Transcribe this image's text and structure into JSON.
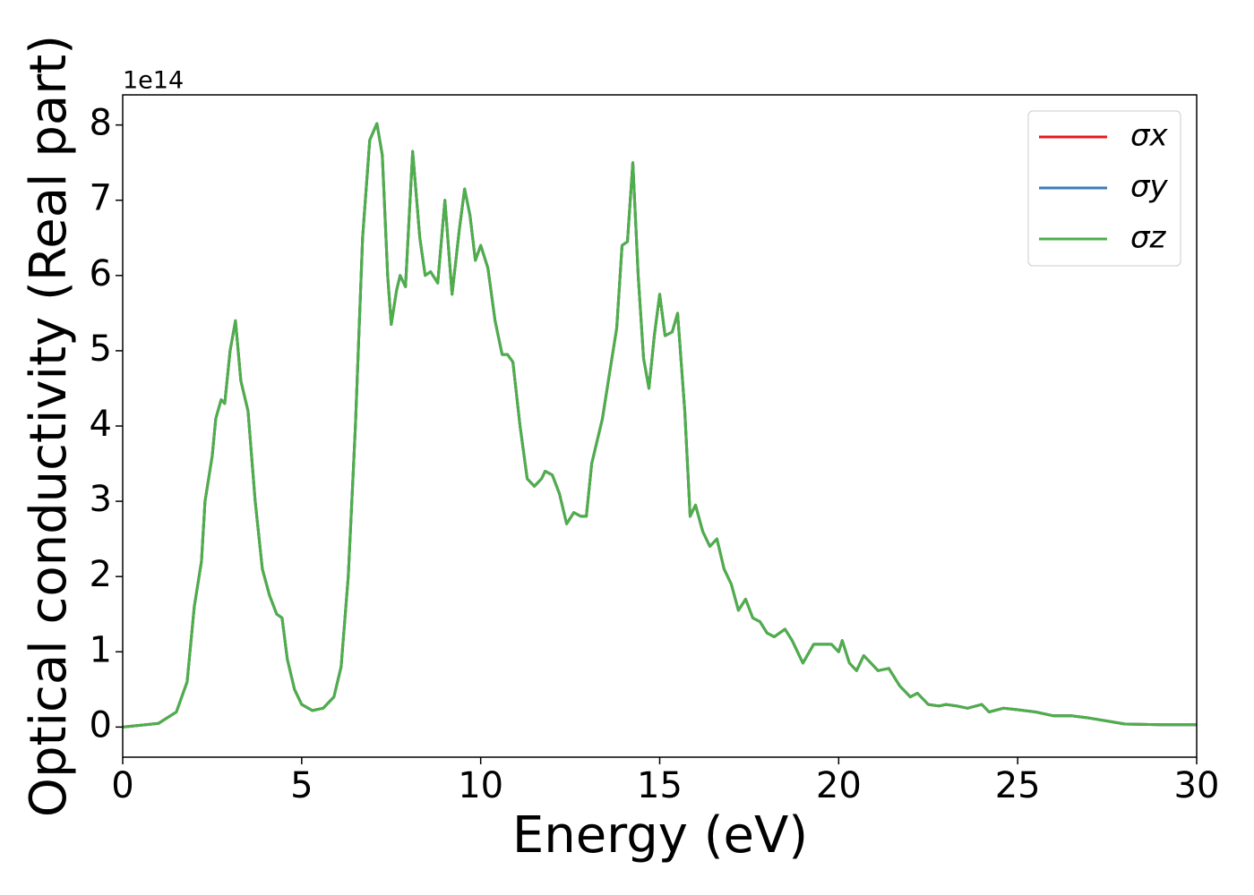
{
  "chart_data": {
    "type": "line",
    "x_label": "Energy (eV)",
    "y_label": "Optical conductivity (Real part)",
    "y_offset_label": "1e14",
    "xlim": [
      0,
      30
    ],
    "ylim": [
      -0.4,
      8.4
    ],
    "xticks": [
      0,
      5,
      10,
      15,
      20,
      25,
      30
    ],
    "yticks": [
      0,
      1,
      2,
      3,
      4,
      5,
      6,
      7,
      8
    ],
    "legend": "upper right",
    "x": [
      0,
      1,
      1.5,
      1.8,
      2.0,
      2.2,
      2.3,
      2.5,
      2.6,
      2.75,
      2.85,
      3.0,
      3.15,
      3.3,
      3.5,
      3.7,
      3.9,
      4.1,
      4.3,
      4.45,
      4.6,
      4.8,
      5.0,
      5.3,
      5.6,
      5.9,
      6.1,
      6.3,
      6.5,
      6.7,
      6.9,
      7.1,
      7.25,
      7.4,
      7.5,
      7.65,
      7.75,
      7.9,
      8.1,
      8.3,
      8.45,
      8.6,
      8.8,
      9.0,
      9.2,
      9.4,
      9.55,
      9.7,
      9.85,
      10.0,
      10.2,
      10.4,
      10.6,
      10.75,
      10.9,
      11.1,
      11.3,
      11.5,
      11.7,
      11.8,
      12.0,
      12.2,
      12.4,
      12.6,
      12.8,
      12.95,
      13.1,
      13.4,
      13.6,
      13.8,
      13.95,
      14.1,
      14.25,
      14.4,
      14.55,
      14.7,
      14.85,
      15.0,
      15.15,
      15.35,
      15.5,
      15.7,
      15.85,
      16.0,
      16.2,
      16.4,
      16.6,
      16.8,
      17.0,
      17.2,
      17.4,
      17.6,
      17.8,
      18.0,
      18.2,
      18.5,
      18.7,
      19.0,
      19.3,
      19.6,
      19.8,
      20.0,
      20.1,
      20.3,
      20.5,
      20.7,
      20.9,
      21.1,
      21.4,
      21.7,
      22.0,
      22.2,
      22.5,
      22.8,
      23.0,
      23.3,
      23.6,
      24.0,
      24.2,
      24.6,
      25.0,
      25.5,
      26.0,
      26.5,
      27.0,
      27.5,
      28.0,
      29.0,
      30.0
    ],
    "series": [
      {
        "name": "σx",
        "color": "#e41a1c",
        "values": [
          0.0,
          0.05,
          0.2,
          0.6,
          1.6,
          2.2,
          3.0,
          3.6,
          4.1,
          4.35,
          4.3,
          5.0,
          5.4,
          4.6,
          4.2,
          3.0,
          2.1,
          1.75,
          1.5,
          1.45,
          0.9,
          0.5,
          0.3,
          0.22,
          0.25,
          0.4,
          0.8,
          2.0,
          4.0,
          6.5,
          7.8,
          8.02,
          7.6,
          6.0,
          5.35,
          5.8,
          6.0,
          5.85,
          7.65,
          6.5,
          6.0,
          6.05,
          5.9,
          7.0,
          5.75,
          6.6,
          7.15,
          6.8,
          6.2,
          6.4,
          6.1,
          5.4,
          4.95,
          4.95,
          4.85,
          4.0,
          3.3,
          3.2,
          3.3,
          3.4,
          3.35,
          3.1,
          2.7,
          2.85,
          2.8,
          2.8,
          3.5,
          4.1,
          4.7,
          5.3,
          6.4,
          6.45,
          7.5,
          6.0,
          4.9,
          4.5,
          5.2,
          5.75,
          5.2,
          5.25,
          5.5,
          4.2,
          2.8,
          2.95,
          2.6,
          2.4,
          2.5,
          2.1,
          1.9,
          1.55,
          1.7,
          1.45,
          1.4,
          1.25,
          1.2,
          1.3,
          1.15,
          0.85,
          1.1,
          1.1,
          1.1,
          1.0,
          1.15,
          0.85,
          0.75,
          0.95,
          0.85,
          0.75,
          0.78,
          0.55,
          0.4,
          0.45,
          0.3,
          0.28,
          0.3,
          0.28,
          0.25,
          0.3,
          0.2,
          0.25,
          0.23,
          0.2,
          0.15,
          0.15,
          0.12,
          0.08,
          0.04,
          0.03,
          0.03
        ]
      },
      {
        "name": "σy",
        "color": "#377eb8",
        "values": [
          0.0,
          0.05,
          0.2,
          0.6,
          1.6,
          2.2,
          3.0,
          3.6,
          4.1,
          4.35,
          4.3,
          5.0,
          5.4,
          4.6,
          4.2,
          3.0,
          2.1,
          1.75,
          1.5,
          1.45,
          0.9,
          0.5,
          0.3,
          0.22,
          0.25,
          0.4,
          0.8,
          2.0,
          4.0,
          6.5,
          7.8,
          8.02,
          7.6,
          6.0,
          5.35,
          5.8,
          6.0,
          5.85,
          7.65,
          6.5,
          6.0,
          6.05,
          5.9,
          7.0,
          5.75,
          6.6,
          7.15,
          6.8,
          6.2,
          6.4,
          6.1,
          5.4,
          4.95,
          4.95,
          4.85,
          4.0,
          3.3,
          3.2,
          3.3,
          3.4,
          3.35,
          3.1,
          2.7,
          2.85,
          2.8,
          2.8,
          3.5,
          4.1,
          4.7,
          5.3,
          6.4,
          6.45,
          7.5,
          6.0,
          4.9,
          4.5,
          5.2,
          5.75,
          5.2,
          5.25,
          5.5,
          4.2,
          2.8,
          2.95,
          2.6,
          2.4,
          2.5,
          2.1,
          1.9,
          1.55,
          1.7,
          1.45,
          1.4,
          1.25,
          1.2,
          1.3,
          1.15,
          0.85,
          1.1,
          1.1,
          1.1,
          1.0,
          1.15,
          0.85,
          0.75,
          0.95,
          0.85,
          0.75,
          0.78,
          0.55,
          0.4,
          0.45,
          0.3,
          0.28,
          0.3,
          0.28,
          0.25,
          0.3,
          0.2,
          0.25,
          0.23,
          0.2,
          0.15,
          0.15,
          0.12,
          0.08,
          0.04,
          0.03,
          0.03
        ]
      },
      {
        "name": "σz",
        "color": "#4daf4a",
        "values": [
          0.0,
          0.05,
          0.2,
          0.6,
          1.6,
          2.2,
          3.0,
          3.6,
          4.1,
          4.35,
          4.3,
          5.0,
          5.4,
          4.6,
          4.2,
          3.0,
          2.1,
          1.75,
          1.5,
          1.45,
          0.9,
          0.5,
          0.3,
          0.22,
          0.25,
          0.4,
          0.8,
          2.0,
          4.0,
          6.5,
          7.8,
          8.02,
          7.6,
          6.0,
          5.35,
          5.8,
          6.0,
          5.85,
          7.65,
          6.5,
          6.0,
          6.05,
          5.9,
          7.0,
          5.75,
          6.6,
          7.15,
          6.8,
          6.2,
          6.4,
          6.1,
          5.4,
          4.95,
          4.95,
          4.85,
          4.0,
          3.3,
          3.2,
          3.3,
          3.4,
          3.35,
          3.1,
          2.7,
          2.85,
          2.8,
          2.8,
          3.5,
          4.1,
          4.7,
          5.3,
          6.4,
          6.45,
          7.5,
          6.0,
          4.9,
          4.5,
          5.2,
          5.75,
          5.2,
          5.25,
          5.5,
          4.2,
          2.8,
          2.95,
          2.6,
          2.4,
          2.5,
          2.1,
          1.9,
          1.55,
          1.7,
          1.45,
          1.4,
          1.25,
          1.2,
          1.3,
          1.15,
          0.85,
          1.1,
          1.1,
          1.1,
          1.0,
          1.15,
          0.85,
          0.75,
          0.95,
          0.85,
          0.75,
          0.78,
          0.55,
          0.4,
          0.45,
          0.3,
          0.28,
          0.3,
          0.28,
          0.25,
          0.3,
          0.2,
          0.25,
          0.23,
          0.2,
          0.15,
          0.15,
          0.12,
          0.08,
          0.04,
          0.03,
          0.03
        ]
      }
    ]
  }
}
